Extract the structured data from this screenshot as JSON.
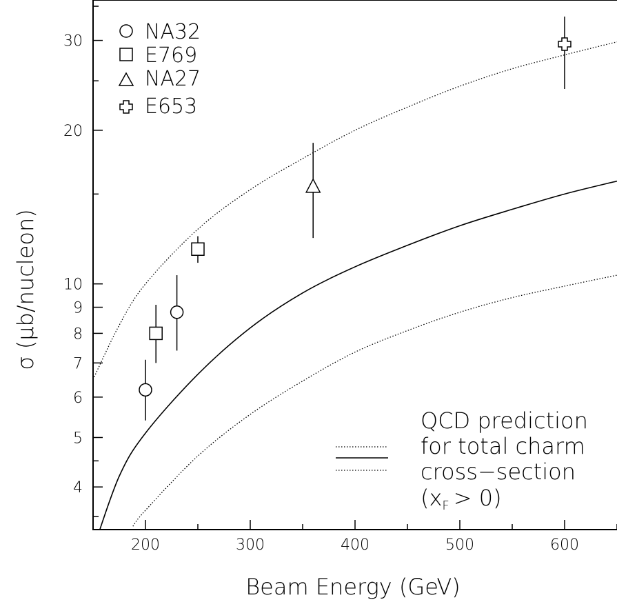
{
  "chart_data": {
    "type": "scatter",
    "xlabel": "Beam Energy (GeV)",
    "ylabel": "σ (μb/nucleon)",
    "xlim": [
      150,
      650
    ],
    "ylim": [
      3.3,
      36
    ],
    "y_scale": "log",
    "grid": false,
    "legend_position": "top-left",
    "x_ticks": [
      200,
      300,
      400,
      500,
      600
    ],
    "x_tick_labels": [
      "200",
      "300",
      "400",
      "500",
      "600"
    ],
    "y_ticks": [
      4,
      5,
      6,
      7,
      8,
      9,
      10,
      20,
      30
    ],
    "y_tick_labels": [
      "4",
      "5",
      "6",
      "7",
      "8",
      "9",
      "10",
      "20",
      "30"
    ],
    "series": [
      {
        "name": "NA32",
        "marker": "circle",
        "points": [
          {
            "x": 200,
            "y": 6.2,
            "ylo": 5.4,
            "yhi": 7.1
          },
          {
            "x": 230,
            "y": 8.8,
            "ylo": 7.4,
            "yhi": 10.4
          }
        ]
      },
      {
        "name": "E769",
        "marker": "square",
        "points": [
          {
            "x": 210,
            "y": 8.0,
            "ylo": 7.0,
            "yhi": 9.1
          },
          {
            "x": 250,
            "y": 11.7,
            "ylo": 11.0,
            "yhi": 12.4
          }
        ]
      },
      {
        "name": "NA27",
        "marker": "triangle",
        "points": [
          {
            "x": 360,
            "y": 15.5,
            "ylo": 12.3,
            "yhi": 18.9
          }
        ]
      },
      {
        "name": "E653",
        "marker": "cross",
        "points": [
          {
            "x": 600,
            "y": 29.5,
            "ylo": 24.1,
            "yhi": 33.4
          }
        ]
      }
    ],
    "curves": [
      {
        "style": "dotted",
        "x": [
          150,
          175,
          200,
          250,
          300,
          350,
          400,
          450,
          500,
          550,
          600,
          650
        ],
        "y": [
          6.5,
          8.3,
          10.0,
          12.8,
          15.3,
          17.6,
          20.0,
          22.2,
          24.4,
          26.4,
          28.1,
          29.8
        ]
      },
      {
        "style": "solid",
        "x": [
          152,
          175,
          200,
          250,
          300,
          350,
          400,
          450,
          500,
          550,
          600,
          650
        ],
        "y": [
          3.1,
          4.2,
          5.1,
          6.65,
          8.2,
          9.6,
          10.8,
          11.9,
          13.0,
          14.0,
          15.0,
          15.9
        ]
      },
      {
        "style": "dotted",
        "x": [
          188,
          200,
          250,
          300,
          350,
          400,
          450,
          500,
          550,
          600,
          650
        ],
        "y": [
          3.35,
          3.6,
          4.6,
          5.55,
          6.45,
          7.35,
          8.1,
          8.8,
          9.4,
          9.9,
          10.4
        ]
      }
    ],
    "annotation": {
      "lines": [
        "QCD prediction",
        "for total charm",
        "cross−section",
        "(x",
        ") "
      ],
      "subscript": "F",
      "condition": "> 0)"
    }
  }
}
